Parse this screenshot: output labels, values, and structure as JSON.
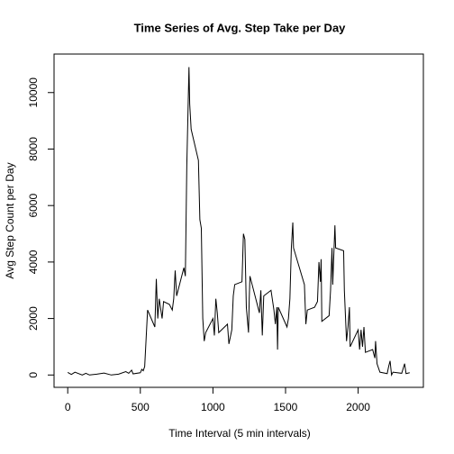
{
  "chart_data": {
    "type": "line",
    "title": "Time Series of Avg. Step Take per Day",
    "xlabel": "Time Interval (5 min intervals)",
    "ylabel": "Avg Step Count per Day",
    "xlim": [
      -94.2,
      2449.2
    ],
    "ylim": [
      -437,
      11364
    ],
    "xticks": [
      0,
      500,
      1000,
      1500,
      2000
    ],
    "yticks": [
      0,
      2000,
      4000,
      6000,
      8000,
      10000
    ],
    "color": "#000000",
    "x": [
      0,
      25,
      50,
      100,
      125,
      150,
      200,
      250,
      300,
      350,
      400,
      420,
      440,
      450,
      500,
      510,
      520,
      530,
      550,
      600,
      610,
      620,
      630,
      650,
      660,
      700,
      720,
      730,
      740,
      750,
      800,
      810,
      820,
      835,
      840,
      850,
      900,
      910,
      920,
      930,
      940,
      950,
      1000,
      1010,
      1020,
      1030,
      1040,
      1100,
      1110,
      1130,
      1140,
      1150,
      1200,
      1210,
      1220,
      1230,
      1245,
      1250,
      1255,
      1300,
      1320,
      1330,
      1340,
      1350,
      1400,
      1420,
      1430,
      1440,
      1445,
      1450,
      1510,
      1520,
      1530,
      1540,
      1550,
      1555,
      1630,
      1640,
      1650,
      1700,
      1720,
      1730,
      1740,
      1745,
      1750,
      1800,
      1810,
      1820,
      1825,
      1840,
      1845,
      1900,
      1905,
      1920,
      1930,
      1940,
      1945,
      2000,
      2010,
      2020,
      2030,
      2040,
      2050,
      2100,
      2115,
      2120,
      2130,
      2150,
      2200,
      2210,
      2220,
      2230,
      2240,
      2300,
      2320,
      2330,
      2355
    ],
    "values": [
      90,
      20,
      100,
      0,
      60,
      0,
      30,
      70,
      0,
      30,
      120,
      60,
      170,
      40,
      80,
      200,
      150,
      300,
      2300,
      1700,
      3400,
      2000,
      2700,
      2000,
      2600,
      2500,
      2300,
      2700,
      3700,
      2800,
      3800,
      3500,
      7400,
      10900,
      9600,
      8700,
      7600,
      5500,
      5200,
      2000,
      1200,
      1500,
      2000,
      1400,
      2700,
      2200,
      1500,
      1800,
      1100,
      1600,
      2800,
      3200,
      3300,
      5000,
      4800,
      2400,
      1500,
      2700,
      3500,
      2600,
      2200,
      3000,
      1400,
      2800,
      3000,
      2300,
      1800,
      2400,
      900,
      2400,
      1700,
      2000,
      2700,
      4500,
      5400,
      4500,
      3200,
      1800,
      2300,
      2400,
      2600,
      4000,
      3300,
      4100,
      1900,
      2100,
      3000,
      4500,
      3200,
      5300,
      4500,
      4400,
      3000,
      1200,
      1700,
      2400,
      1000,
      1600,
      900,
      1600,
      1000,
      1700,
      800,
      900,
      600,
      1200,
      400,
      100,
      50,
      300,
      500,
      0,
      100,
      60,
      400,
      50,
      80
    ]
  }
}
